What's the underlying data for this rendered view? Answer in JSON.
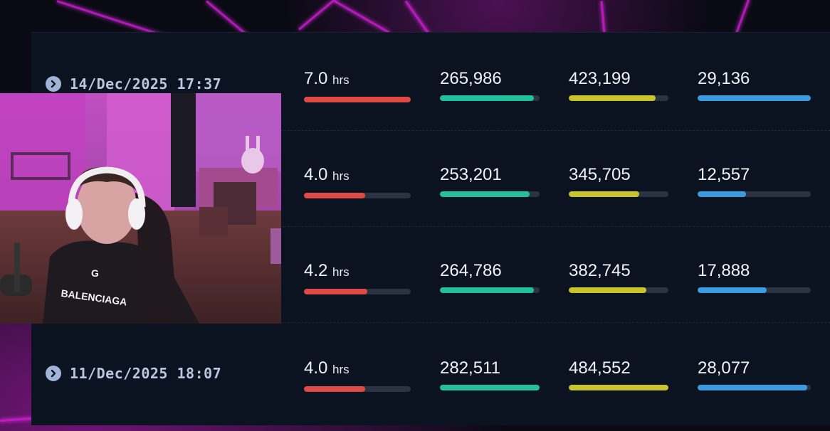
{
  "colors": {
    "hours": "#e04a45",
    "metric2": "#23c0a0",
    "metric3": "#c9c42a",
    "metric4": "#3a9be0"
  },
  "rows": [
    {
      "date": "14/Dec/2025 17:37",
      "hours_value": "7.0",
      "hours_unit": "hrs",
      "hours_level": 1.0,
      "m2": "265,986",
      "m2_level": 0.94,
      "m3": "423,199",
      "m3_level": 0.87,
      "m4": "29,136",
      "m4_level": 1.0
    },
    {
      "date": "",
      "hours_value": "4.0",
      "hours_unit": "hrs",
      "hours_level": 0.57,
      "m2": "253,201",
      "m2_level": 0.9,
      "m3": "345,705",
      "m3_level": 0.71,
      "m4": "12,557",
      "m4_level": 0.43
    },
    {
      "date": "",
      "hours_value": "4.2",
      "hours_unit": "hrs",
      "hours_level": 0.59,
      "m2": "264,786",
      "m2_level": 0.94,
      "m3": "382,745",
      "m3_level": 0.78,
      "m4": "17,888",
      "m4_level": 0.61
    },
    {
      "date": "11/Dec/2025 18:07",
      "hours_value": "4.0",
      "hours_unit": "hrs",
      "hours_level": 0.57,
      "m2": "282,511",
      "m2_level": 1.0,
      "m3": "484,552",
      "m3_level": 1.0,
      "m4": "28,077",
      "m4_level": 0.97
    }
  ],
  "webcam": {
    "shirt_text": "BALENCIAGA",
    "chest_logo": "G"
  }
}
